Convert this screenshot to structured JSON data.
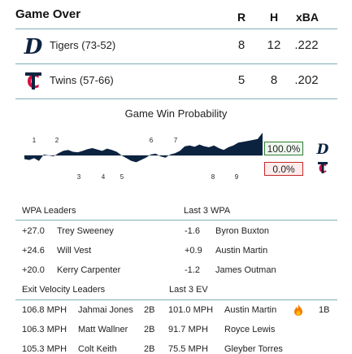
{
  "header": {
    "title": "Game Over",
    "cols": [
      "R",
      "H",
      "xBA"
    ]
  },
  "teams": [
    {
      "name": "Tigers (73-52)",
      "r": "8",
      "h": "12",
      "xba": ".222",
      "logo": "tigers-d-logo"
    },
    {
      "name": "Twins (57-66)",
      "r": "5",
      "h": "8",
      "xba": ".202",
      "logo": "twins-tc-logo"
    }
  ],
  "win_probability": {
    "title": "Game Win Probability",
    "top_innings": [
      "1",
      "2",
      "6",
      "7"
    ],
    "bottom_innings": [
      "3",
      "4",
      "5",
      "8",
      "9"
    ],
    "home_pct": "100.0%",
    "away_pct": "0.0%",
    "colors": {
      "tigers": "#0c2340",
      "twins": "#d31145",
      "home_box_border": "#2e7d32",
      "away_box_border": "#c62828"
    },
    "curve": [
      0.42,
      0.4,
      0.44,
      0.38,
      0.52,
      0.5,
      0.48,
      0.55,
      0.6,
      0.62,
      0.58,
      0.57,
      0.6,
      0.64,
      0.66,
      0.63,
      0.6,
      0.65,
      0.62,
      0.58,
      0.5,
      0.44,
      0.38,
      0.35,
      0.4,
      0.45,
      0.52,
      0.54,
      0.48,
      0.45,
      0.52,
      0.55,
      0.6,
      0.7,
      0.72,
      0.69,
      0.74,
      0.7,
      0.68,
      0.72,
      0.66,
      0.62,
      0.68,
      0.72,
      0.78,
      0.8,
      0.82,
      0.84,
      0.86,
      1.0
    ]
  },
  "wpa": {
    "leaders_label": "WPA Leaders",
    "last3_label": "Last 3 WPA",
    "leaders": [
      {
        "value": "+27.0",
        "player": "Trey Sweeney"
      },
      {
        "value": "+24.6",
        "player": "Will Vest"
      },
      {
        "value": "+20.0",
        "player": "Kerry Carpenter"
      }
    ],
    "last3": [
      {
        "value": "-1.6",
        "player": "Byron Buxton"
      },
      {
        "value": "+0.9",
        "player": "Austin Martin"
      },
      {
        "value": "-1.2",
        "player": "James Outman"
      }
    ]
  },
  "ev": {
    "leaders_label": "Exit Velocity Leaders",
    "last3_label": "Last 3 EV",
    "leaders": [
      {
        "speed": "106.8 MPH",
        "player": "Jahmai Jones",
        "result": "2B"
      },
      {
        "speed": "106.3 MPH",
        "player": "Matt Wallner",
        "result": "2B"
      },
      {
        "speed": "105.3 MPH",
        "player": "Colt Keith",
        "result": "2B"
      }
    ],
    "last3": [
      {
        "speed": "101.0 MPH",
        "player": "Austin Martin",
        "result": "1B",
        "icon": "fire-icon"
      },
      {
        "speed": "91.7 MPH",
        "player": "Royce Lewis",
        "result": ""
      },
      {
        "speed": "75.5 MPH",
        "player": "Gleyber Torres",
        "result": ""
      }
    ]
  }
}
